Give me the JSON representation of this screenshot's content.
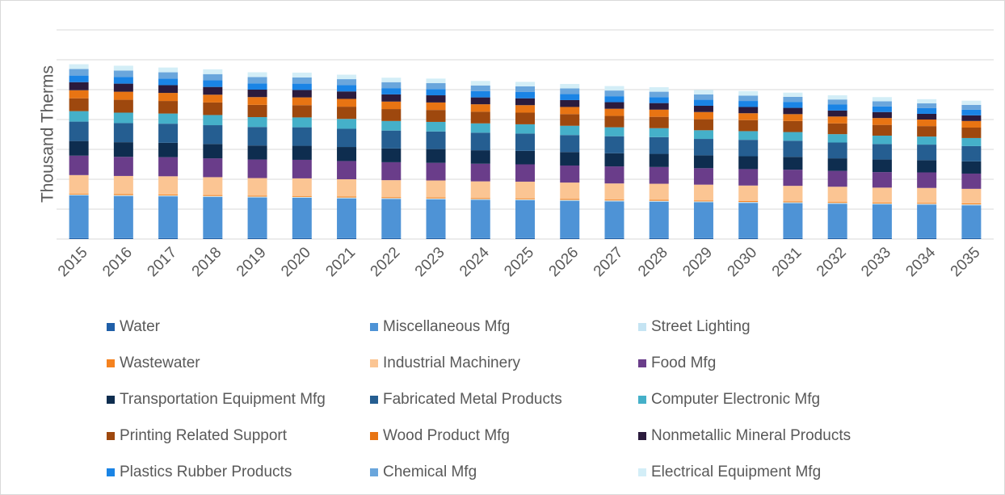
{
  "chart_data": {
    "type": "stacked_bar",
    "y_label": "Thousand Therms",
    "categories": [
      "2015",
      "2016",
      "2017",
      "2018",
      "2019",
      "2020",
      "2021",
      "2022",
      "2023",
      "2024",
      "2025",
      "2026",
      "2027",
      "2028",
      "2029",
      "2030",
      "2031",
      "2032",
      "2033",
      "2034",
      "2035"
    ],
    "ylim": [
      0,
      7
    ],
    "yticks": [
      0,
      1,
      2,
      3,
      4,
      5,
      6,
      7
    ],
    "ytick_labels": false,
    "grid": true,
    "series": [
      {
        "name": "Water",
        "color": "#1f5fa8",
        "values": [
          0.03,
          0.03,
          0.03,
          0.03,
          0.03,
          0.03,
          0.03,
          0.03,
          0.03,
          0.03,
          0.03,
          0.03,
          0.03,
          0.03,
          0.03,
          0.03,
          0.03,
          0.03,
          0.03,
          0.03,
          0.03
        ]
      },
      {
        "name": "Miscellaneous Mfg",
        "color": "#4e93d6",
        "values": [
          1.43,
          1.41,
          1.4,
          1.38,
          1.36,
          1.35,
          1.33,
          1.31,
          1.3,
          1.28,
          1.27,
          1.25,
          1.23,
          1.22,
          1.2,
          1.18,
          1.17,
          1.15,
          1.13,
          1.12,
          1.1
        ]
      },
      {
        "name": "Street Lighting",
        "color": "#c5e4f3",
        "values": [
          0.03,
          0.03,
          0.03,
          0.03,
          0.03,
          0.03,
          0.03,
          0.03,
          0.03,
          0.03,
          0.03,
          0.03,
          0.03,
          0.03,
          0.03,
          0.03,
          0.03,
          0.03,
          0.03,
          0.03,
          0.03
        ]
      },
      {
        "name": "Wastewater",
        "color": "#f5821f",
        "values": [
          0.03,
          0.03,
          0.03,
          0.03,
          0.03,
          0.03,
          0.03,
          0.03,
          0.03,
          0.03,
          0.03,
          0.03,
          0.03,
          0.03,
          0.03,
          0.03,
          0.03,
          0.03,
          0.03,
          0.03,
          0.03
        ]
      },
      {
        "name": "Industrial Machinery",
        "color": "#fbc593",
        "values": [
          0.62,
          0.61,
          0.61,
          0.6,
          0.59,
          0.59,
          0.58,
          0.57,
          0.57,
          0.56,
          0.56,
          0.55,
          0.54,
          0.54,
          0.53,
          0.52,
          0.52,
          0.51,
          0.5,
          0.5,
          0.49
        ]
      },
      {
        "name": "Food Mfg",
        "color": "#6a3d8a",
        "values": [
          0.65,
          0.64,
          0.64,
          0.63,
          0.62,
          0.62,
          0.61,
          0.6,
          0.59,
          0.59,
          0.58,
          0.57,
          0.57,
          0.56,
          0.55,
          0.55,
          0.54,
          0.53,
          0.52,
          0.52,
          0.51
        ]
      },
      {
        "name": "Transportation Equipment Mfg",
        "color": "#0e2d4f",
        "values": [
          0.49,
          0.49,
          0.48,
          0.48,
          0.47,
          0.47,
          0.47,
          0.46,
          0.46,
          0.45,
          0.45,
          0.45,
          0.44,
          0.44,
          0.43,
          0.43,
          0.43,
          0.42,
          0.42,
          0.41,
          0.41
        ]
      },
      {
        "name": "Fabricated Metal Products",
        "color": "#255e91",
        "values": [
          0.65,
          0.64,
          0.64,
          0.63,
          0.62,
          0.62,
          0.61,
          0.6,
          0.59,
          0.59,
          0.58,
          0.57,
          0.57,
          0.56,
          0.55,
          0.55,
          0.54,
          0.53,
          0.52,
          0.52,
          0.51
        ]
      },
      {
        "name": "Computer Electronic Mfg",
        "color": "#45b0c9",
        "values": [
          0.35,
          0.35,
          0.34,
          0.34,
          0.33,
          0.33,
          0.33,
          0.32,
          0.32,
          0.31,
          0.31,
          0.31,
          0.3,
          0.3,
          0.29,
          0.29,
          0.29,
          0.28,
          0.28,
          0.27,
          0.27
        ]
      },
      {
        "name": "Printing Related Support",
        "color": "#9e480e",
        "values": [
          0.43,
          0.43,
          0.42,
          0.42,
          0.41,
          0.41,
          0.41,
          0.4,
          0.4,
          0.39,
          0.39,
          0.39,
          0.38,
          0.38,
          0.37,
          0.37,
          0.37,
          0.36,
          0.36,
          0.35,
          0.35
        ]
      },
      {
        "name": "Wood Product Mfg",
        "color": "#e87413",
        "values": [
          0.27,
          0.27,
          0.27,
          0.26,
          0.26,
          0.26,
          0.26,
          0.25,
          0.25,
          0.25,
          0.25,
          0.24,
          0.24,
          0.24,
          0.24,
          0.23,
          0.23,
          0.23,
          0.23,
          0.22,
          0.22
        ]
      },
      {
        "name": "Nonmetallic Mineral Products",
        "color": "#2b1b3d",
        "values": [
          0.27,
          0.27,
          0.26,
          0.26,
          0.25,
          0.25,
          0.25,
          0.24,
          0.24,
          0.23,
          0.23,
          0.23,
          0.22,
          0.22,
          0.21,
          0.21,
          0.21,
          0.2,
          0.2,
          0.19,
          0.19
        ]
      },
      {
        "name": "Plastics Rubber Products",
        "color": "#1a84e5",
        "values": [
          0.22,
          0.22,
          0.22,
          0.22,
          0.21,
          0.21,
          0.21,
          0.21,
          0.21,
          0.21,
          0.21,
          0.2,
          0.2,
          0.2,
          0.2,
          0.2,
          0.2,
          0.2,
          0.19,
          0.19,
          0.19
        ]
      },
      {
        "name": "Chemical Mfg",
        "color": "#6aa6dc",
        "values": [
          0.22,
          0.22,
          0.21,
          0.21,
          0.21,
          0.21,
          0.2,
          0.2,
          0.2,
          0.19,
          0.19,
          0.19,
          0.19,
          0.18,
          0.18,
          0.18,
          0.17,
          0.17,
          0.17,
          0.16,
          0.16
        ]
      },
      {
        "name": "Electrical Equipment Mfg",
        "color": "#d3eef7",
        "values": [
          0.16,
          0.16,
          0.16,
          0.16,
          0.16,
          0.16,
          0.15,
          0.15,
          0.15,
          0.15,
          0.15,
          0.15,
          0.15,
          0.15,
          0.15,
          0.15,
          0.14,
          0.14,
          0.14,
          0.14,
          0.14
        ]
      }
    ]
  }
}
